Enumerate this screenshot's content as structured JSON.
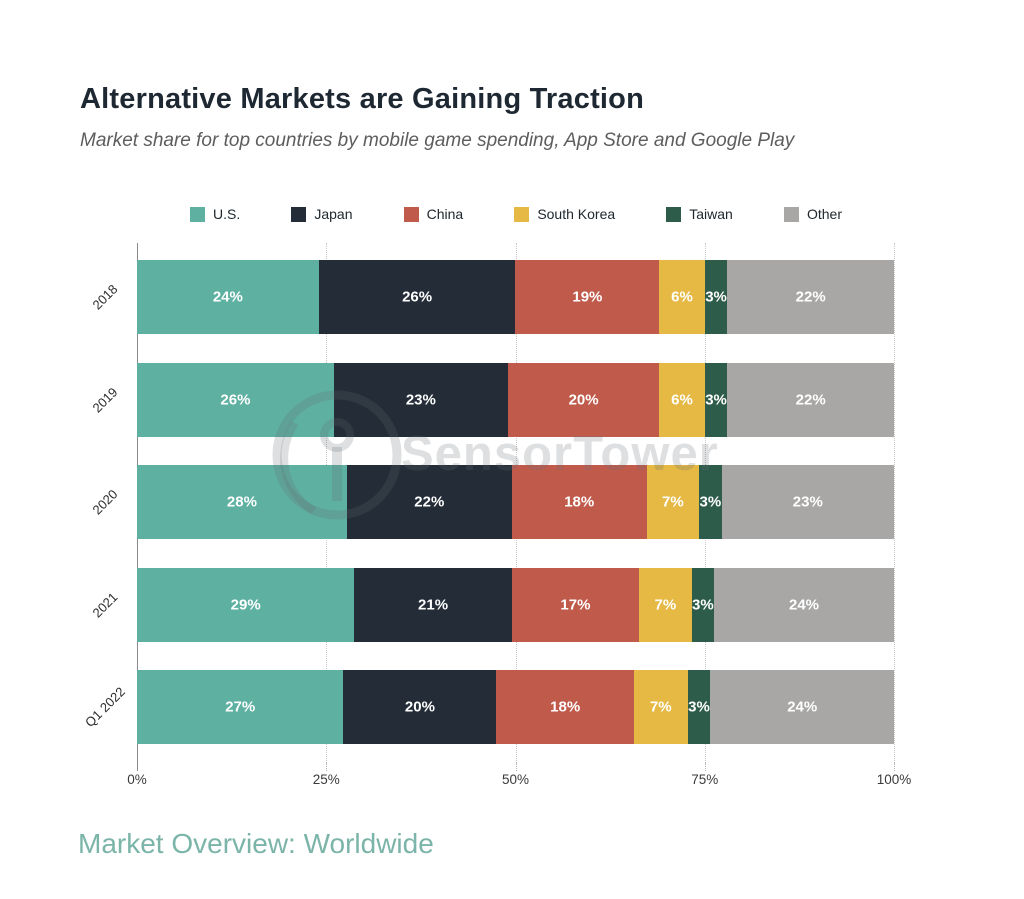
{
  "header": {
    "title": "Alternative Markets are Gaining Traction",
    "subtitle": "Market share for top countries by mobile game spending, App Store and Google Play"
  },
  "chart_data": {
    "type": "bar",
    "orientation": "horizontal-stacked",
    "title": "Alternative Markets are Gaining Traction",
    "subtitle": "Market share for top countries by mobile game spending, App Store and Google Play",
    "categories": [
      "2018",
      "2019",
      "2020",
      "2021",
      "Q1 2022"
    ],
    "series": [
      {
        "name": "U.S.",
        "color": "#5EB0A1",
        "values": [
          24,
          26,
          28,
          29,
          27
        ]
      },
      {
        "name": "Japan",
        "color": "#232C37",
        "values": [
          26,
          23,
          22,
          21,
          20
        ]
      },
      {
        "name": "China",
        "color": "#C05B4C",
        "values": [
          19,
          20,
          18,
          17,
          18
        ]
      },
      {
        "name": "South Korea",
        "color": "#E5B944",
        "values": [
          6,
          6,
          7,
          7,
          7
        ]
      },
      {
        "name": "Taiwan",
        "color": "#2E5C4B",
        "values": [
          3,
          3,
          3,
          3,
          3
        ]
      },
      {
        "name": "Other",
        "color": "#A8A7A6",
        "values": [
          22,
          22,
          23,
          24,
          24
        ]
      }
    ],
    "x_ticks": [
      "0%",
      "25%",
      "50%",
      "75%",
      "100%"
    ],
    "xlim": [
      0,
      100
    ],
    "value_suffix": "%",
    "grid": "dotted-vertical",
    "legend_position": "top",
    "value_labels": "inside-white-bold"
  },
  "watermark": {
    "text": "SensorTower"
  },
  "footer": {
    "text": "Market Overview: Worldwide",
    "accent_color": "#7BB4A8"
  }
}
